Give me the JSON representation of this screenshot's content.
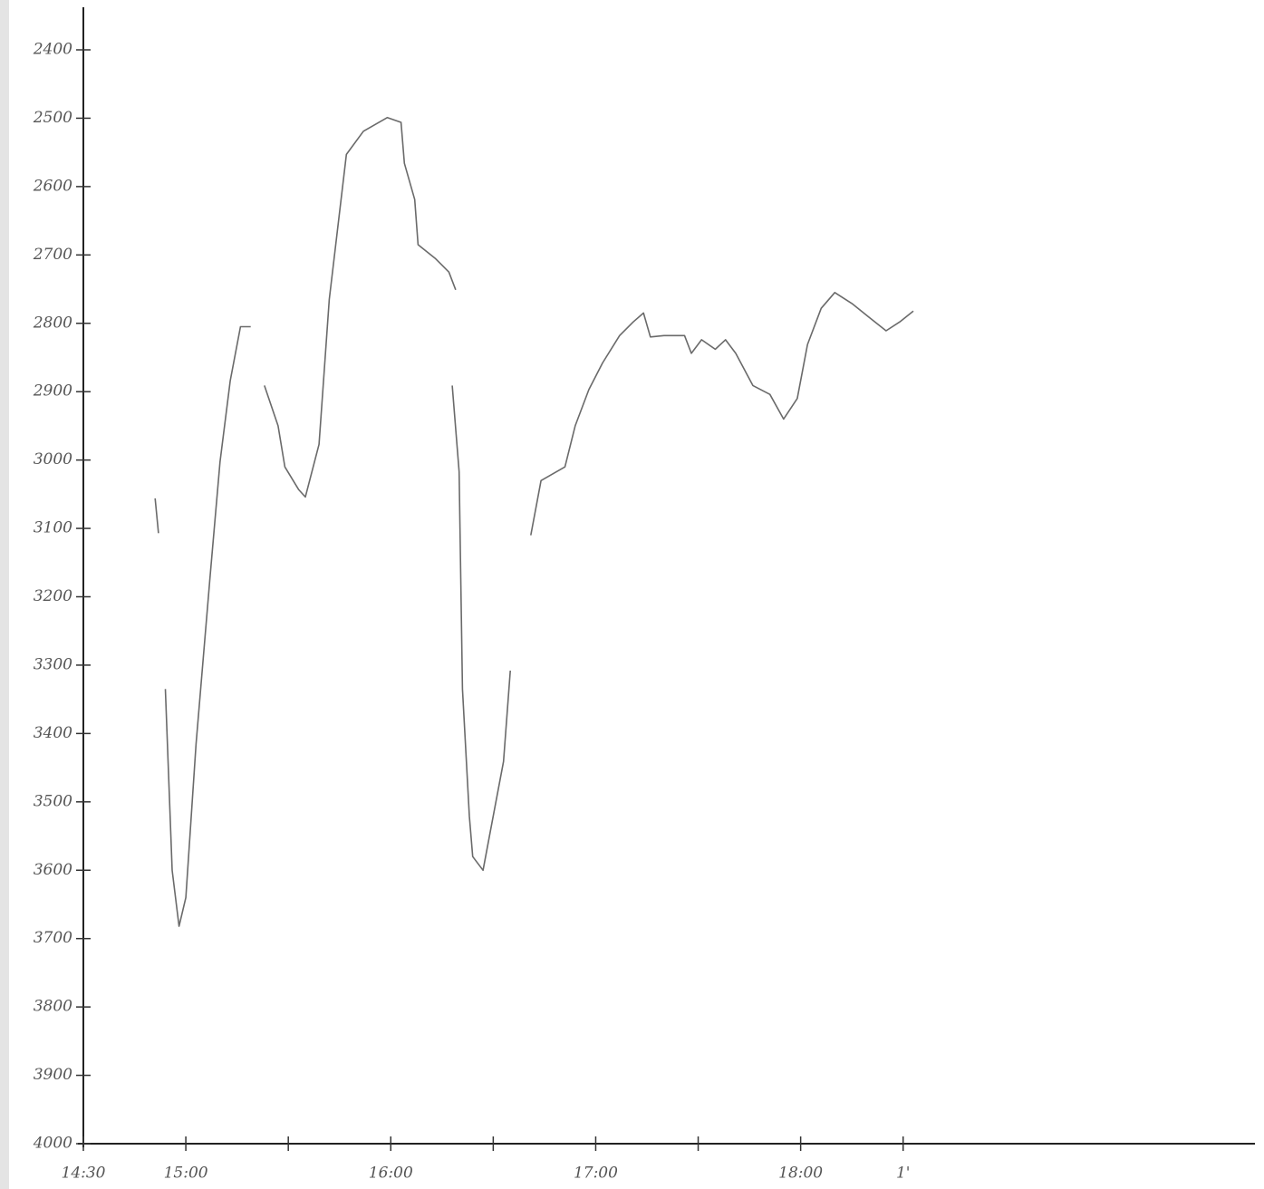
{
  "chart_data": {
    "type": "line",
    "x": [
      "14:51",
      "14:52",
      null,
      "14:54",
      "14:56",
      "14:58",
      "15:00",
      "15:03",
      "15:07",
      "15:10",
      "15:13",
      "15:16",
      "15:19",
      null,
      "15:23",
      "15:27",
      "15:29",
      "15:33",
      "15:35",
      "15:39",
      "15:42",
      "15:47",
      "15:52",
      "15:59",
      "16:03",
      "16:04",
      "16:07",
      "16:08",
      "16:13",
      "16:17",
      "16:19",
      null,
      "16:18",
      "16:20",
      "16:21",
      "16:23",
      "16:24",
      "16:27",
      "16:29",
      "16:33",
      "16:35",
      null,
      "16:41",
      "16:44",
      "16:51",
      "16:54",
      "16:58",
      "17:02",
      "17:07",
      "17:11",
      "17:14",
      "17:16",
      "17:20",
      "17:26",
      "17:28",
      "17:31",
      "17:35",
      "17:38",
      "17:41",
      "17:46",
      "17:51",
      "17:55",
      "17:59",
      "18:02",
      "18:06",
      "18:10",
      "18:15",
      "18:20",
      "18:25",
      "18:29",
      "18:33"
    ],
    "values": [
      3056,
      3107,
      null,
      3335,
      3600,
      3682,
      3640,
      3415,
      3176,
      3003,
      2884,
      2805,
      2805,
      null,
      2891,
      2950,
      3010,
      3043,
      3054,
      2977,
      2765,
      2553,
      2519,
      2499,
      2506,
      2566,
      2619,
      2685,
      2705,
      2725,
      2751,
      null,
      2891,
      3017,
      3335,
      3521,
      3580,
      3600,
      3547,
      3441,
      3308,
      null,
      3110,
      3030,
      3010,
      2950,
      2897,
      2858,
      2818,
      2798,
      2785,
      2820,
      2818,
      2818,
      2844,
      2824,
      2838,
      2824,
      2844,
      2891,
      2904,
      2940,
      2910,
      2831,
      2778,
      2755,
      2771,
      2791,
      2811,
      2798,
      2782
    ],
    "color": "#6a6a6a",
    "xlim": [
      "14:30",
      "20:13"
    ],
    "xticks": [
      {
        "value": "14:30",
        "label": "14:30"
      },
      {
        "value": "15:00",
        "label": "15:00"
      },
      {
        "value": "15:30",
        "label": null
      },
      {
        "value": "16:00",
        "label": "16:00"
      },
      {
        "value": "16:30",
        "label": null
      },
      {
        "value": "17:00",
        "label": "17:00"
      },
      {
        "value": "17:30",
        "label": null
      },
      {
        "value": "18:00",
        "label": "18:00"
      },
      {
        "value": "18:30",
        "label": "1'"
      }
    ],
    "ylim": [
      4000,
      2400
    ],
    "yticks": [
      2400,
      2500,
      2600,
      2700,
      2800,
      2900,
      3000,
      3100,
      3200,
      3300,
      3400,
      3500,
      3600,
      3700,
      3800,
      3900,
      4000
    ]
  }
}
